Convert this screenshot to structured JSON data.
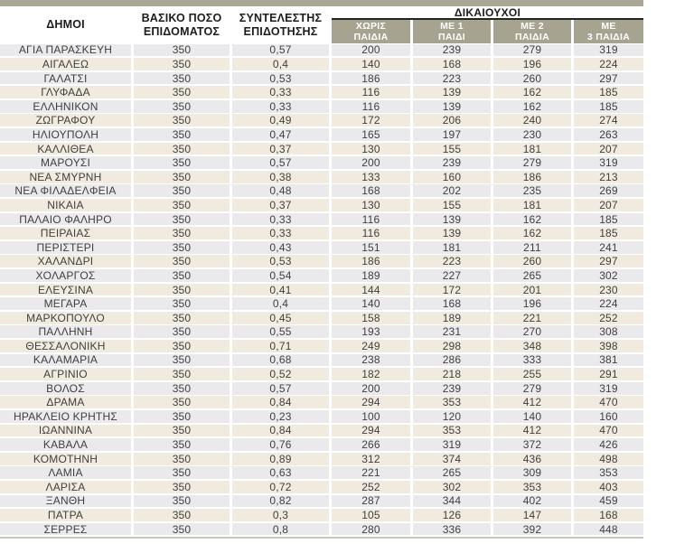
{
  "colors": {
    "khaki_strip": "#aba795",
    "khaki_box": "#a7a391",
    "row_gray": "#eaeaed",
    "row_cream": "#f0ebde",
    "rule_dark": "#242424"
  },
  "header": {
    "municipalities": "ΔΗΜΟΙ",
    "basic_amount": {
      "line1": "ΒΑΣΙΚΟ ΠΟΣΟ",
      "line2": "ΕΠΙΔΟΜΑΤΟΣ"
    },
    "coefficient": {
      "line1": "ΣΥΝΤΕΛΕΣΤΗΣ",
      "line2": "ΕΠΙΔΟΤΗΣΗΣ"
    },
    "beneficiaries_group": "ΔΙΚΑΙΟΥΧΟΙ",
    "sub_columns": [
      {
        "line1": "ΧΩΡΙΣ",
        "line2": "ΠΑΙΔΙΑ"
      },
      {
        "line1": "ΜΕ 1",
        "line2": "ΠΑΙΔΙ"
      },
      {
        "line1": "ΜΕ 2",
        "line2": "ΠΑΙΔΙΑ"
      },
      {
        "line1": "ΜΕ",
        "line2": "3 ΠΑΙΔΙΑ"
      }
    ]
  },
  "table": {
    "rows": [
      [
        "ΑΓΙΑ ΠΑΡΑΣΚΕΥΗ",
        "350",
        "0,57",
        "200",
        "239",
        "279",
        "319"
      ],
      [
        "ΑΙΓΑΛΕΩ",
        "350",
        "0,4",
        "140",
        "168",
        "196",
        "224"
      ],
      [
        "ΓΑΛΑΤΣΙ",
        "350",
        "0,53",
        "186",
        "223",
        "260",
        "297"
      ],
      [
        "ΓΛΥΦΑΔΑ",
        "350",
        "0,33",
        "116",
        "139",
        "162",
        "185"
      ],
      [
        "ΕΛΛΗΝΙΚΟΝ",
        "350",
        "0,33",
        "116",
        "139",
        "162",
        "185"
      ],
      [
        "ΖΩΓΡΑΦΟΥ",
        "350",
        "0,49",
        "172",
        "206",
        "240",
        "274"
      ],
      [
        "ΗΛΙΟΥΠΟΛΗ",
        "350",
        "0,47",
        "165",
        "197",
        "230",
        "263"
      ],
      [
        "ΚΑΛΛΙΘΕΑ",
        "350",
        "0,37",
        "130",
        "155",
        "181",
        "207"
      ],
      [
        "ΜΑΡΟΥΣΙ",
        "350",
        "0,57",
        "200",
        "239",
        "279",
        "319"
      ],
      [
        "ΝΕΑ ΣΜΥΡΝΗ",
        "350",
        "0,38",
        "133",
        "160",
        "186",
        "213"
      ],
      [
        "ΝΕΑ ΦΙΛΑΔΕΛΦΕΙΑ",
        "350",
        "0,48",
        "168",
        "202",
        "235",
        "269"
      ],
      [
        "ΝΙΚΑΙΑ",
        "350",
        "0,37",
        "130",
        "155",
        "181",
        "207"
      ],
      [
        "ΠΑΛΑΙΟ ΦΑΛΗΡΟ",
        "350",
        "0,33",
        "116",
        "139",
        "162",
        "185"
      ],
      [
        "ΠΕΙΡΑΙΑΣ",
        "350",
        "0,33",
        "116",
        "139",
        "162",
        "185"
      ],
      [
        "ΠΕΡΙΣΤΕΡΙ",
        "350",
        "0,43",
        "151",
        "181",
        "211",
        "241"
      ],
      [
        "ΧΑΛΑΝΔΡΙ",
        "350",
        "0,53",
        "186",
        "223",
        "260",
        "297"
      ],
      [
        "ΧΟΛΑΡΓΟΣ",
        "350",
        "0,54",
        "189",
        "227",
        "265",
        "302"
      ],
      [
        "ΕΛΕΥΣΙΝΑ",
        "350",
        "0,41",
        "144",
        "172",
        "201",
        "230"
      ],
      [
        "ΜΕΓΑΡΑ",
        "350",
        "0,4",
        "140",
        "168",
        "196",
        "224"
      ],
      [
        "ΜΑΡΚΟΠΟΥΛΟ",
        "350",
        "0,45",
        "158",
        "189",
        "221",
        "252"
      ],
      [
        "ΠΑΛΛΗΝΗ",
        "350",
        "0,55",
        "193",
        "231",
        "270",
        "308"
      ],
      [
        "ΘΕΣΣΑΛΟΝΙΚΗ",
        "350",
        "0,71",
        "249",
        "298",
        "348",
        "398"
      ],
      [
        "ΚΑΛΑΜΑΡΙΑ",
        "350",
        "0,68",
        "238",
        "286",
        "333",
        "381"
      ],
      [
        "ΑΓΡΙΝΙΟ",
        "350",
        "0,52",
        "182",
        "218",
        "255",
        "291"
      ],
      [
        "ΒΟΛΟΣ",
        "350",
        "0,57",
        "200",
        "239",
        "279",
        "319"
      ],
      [
        "ΔΡΑΜΑ",
        "350",
        "0,84",
        "294",
        "353",
        "412",
        "470"
      ],
      [
        "ΗΡΑΚΛΕΙΟ ΚΡΗΤΗΣ",
        "350",
        "0,23",
        "100",
        "120",
        "140",
        "160"
      ],
      [
        "ΙΩΑΝΝΙΝΑ",
        "350",
        "0,84",
        "294",
        "353",
        "412",
        "470"
      ],
      [
        "ΚΑΒΑΛΑ",
        "350",
        "0,76",
        "266",
        "319",
        "372",
        "426"
      ],
      [
        "ΚΟΜΟΤΗΝΗ",
        "350",
        "0,89",
        "312",
        "374",
        "436",
        "498"
      ],
      [
        "ΛΑΜΙΑ",
        "350",
        "0,63",
        "221",
        "265",
        "309",
        "353"
      ],
      [
        "ΛΑΡΙΣΑ",
        "350",
        "0,72",
        "252",
        "302",
        "353",
        "403"
      ],
      [
        "ΞΑΝΘΗ",
        "350",
        "0,82",
        "287",
        "344",
        "402",
        "459"
      ],
      [
        "ΠΑΤΡΑ",
        "350",
        "0,3",
        "105",
        "126",
        "147",
        "168"
      ],
      [
        "ΣΕΡΡΕΣ",
        "350",
        "0,8",
        "280",
        "336",
        "392",
        "448"
      ]
    ]
  }
}
